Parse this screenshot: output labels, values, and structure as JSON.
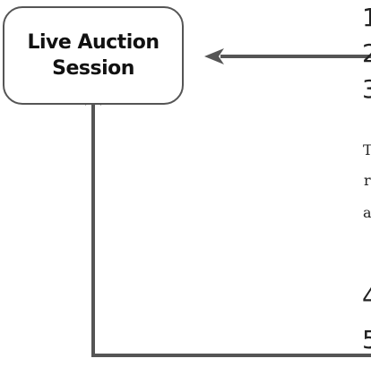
{
  "diagram": {
    "node": {
      "line1": "Live Auction",
      "line2": "Session"
    },
    "edge_text": {
      "n1": "1",
      "n2": "2",
      "n3": "3",
      "n4": "4",
      "n5": "5",
      "t1": "T",
      "t2": "r",
      "t3": "a"
    },
    "colors": {
      "arrow": "#555555",
      "box_border": "#555555",
      "text": "#111111"
    }
  }
}
